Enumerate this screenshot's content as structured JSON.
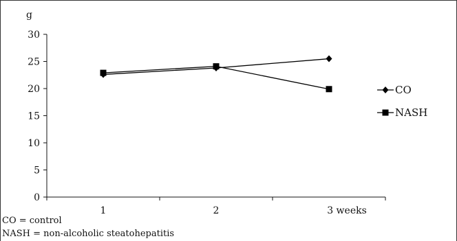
{
  "chart_data": {
    "type": "line",
    "categories": [
      "1",
      "2",
      "3 weeks"
    ],
    "ylabel": "g",
    "xlabel": "",
    "ylim": [
      0,
      30
    ],
    "yticks": [
      0,
      5,
      10,
      15,
      20,
      25,
      30
    ],
    "grid": false,
    "legend_position": "right",
    "series": [
      {
        "name": "CO",
        "marker": "diamond",
        "color": "#000000",
        "values": [
          22.6,
          23.8,
          25.5
        ]
      },
      {
        "name": "NASH",
        "marker": "square",
        "color": "#000000",
        "values": [
          22.9,
          24.1,
          19.9
        ]
      }
    ]
  },
  "footnotes": {
    "co": "CO = control",
    "nash": "NASH = non-alcoholic steatohepatitis"
  }
}
